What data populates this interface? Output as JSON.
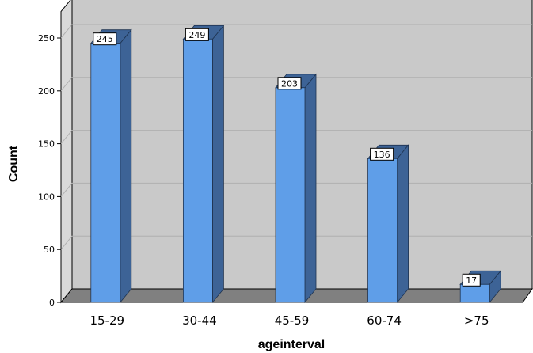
{
  "chart_data": {
    "type": "bar",
    "categories": [
      "15-29",
      "30-44",
      "45-59",
      "60-74",
      ">75"
    ],
    "values": [
      245,
      249,
      203,
      136,
      17
    ],
    "data_labels": [
      "245",
      "249",
      "203",
      "136",
      "17"
    ],
    "xlabel": "ageinterval",
    "ylabel": "Count",
    "ylim": [
      0,
      275
    ],
    "yticks": [
      0,
      50,
      100,
      150,
      200,
      250
    ],
    "ytick_labels": [
      "0",
      "50",
      "100",
      "150",
      "200",
      "250"
    ],
    "grid": true,
    "style": "3d",
    "colors": {
      "bar_front": "#5f9ee8",
      "bar_side": "#3d6396",
      "bar_top": "#3d6396",
      "back_wall": "#c9c9c9",
      "side_wall": "#d9d9d9",
      "floor": "#808080",
      "gridline": "#b0b0b0"
    }
  }
}
